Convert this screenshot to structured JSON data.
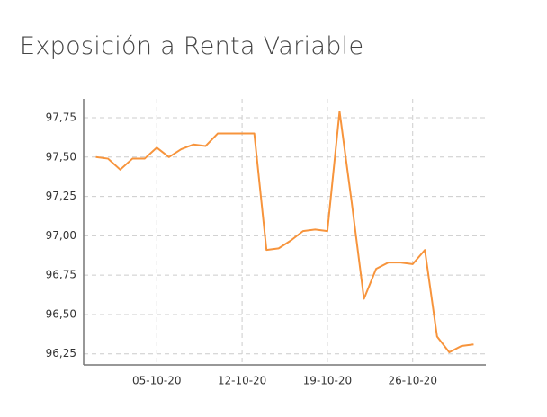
{
  "chart_data": {
    "type": "line",
    "title": "Exposición a Renta Variable",
    "x": [
      "2020-09-30",
      "2020-10-01",
      "2020-10-02",
      "2020-10-03",
      "2020-10-04",
      "2020-10-05",
      "2020-10-06",
      "2020-10-07",
      "2020-10-08",
      "2020-10-09",
      "2020-10-10",
      "2020-10-11",
      "2020-10-12",
      "2020-10-13",
      "2020-10-14",
      "2020-10-15",
      "2020-10-16",
      "2020-10-17",
      "2020-10-18",
      "2020-10-19",
      "2020-10-20",
      "2020-10-21",
      "2020-10-22",
      "2020-10-23",
      "2020-10-24",
      "2020-10-25",
      "2020-10-26",
      "2020-10-27",
      "2020-10-28",
      "2020-10-29",
      "2020-10-30",
      "2020-10-31"
    ],
    "series": [
      {
        "color": "#f7943c",
        "values": [
          97.5,
          97.49,
          97.42,
          97.49,
          97.49,
          97.56,
          97.5,
          97.55,
          97.58,
          97.57,
          97.65,
          97.65,
          97.65,
          97.65,
          96.91,
          96.92,
          96.97,
          97.03,
          97.04,
          97.03,
          97.79,
          97.21,
          96.6,
          96.79,
          96.83,
          96.83,
          96.82,
          96.91,
          96.36,
          96.26,
          96.3,
          96.31
        ]
      }
    ],
    "xlim": [
      "2020-09-29",
      "2020-11-01"
    ],
    "xticks": [
      {
        "value": "2020-10-05",
        "label": "05-10-20"
      },
      {
        "value": "2020-10-12",
        "label": "12-10-20"
      },
      {
        "value": "2020-10-19",
        "label": "19-10-20"
      },
      {
        "value": "2020-10-26",
        "label": "26-10-20"
      }
    ],
    "ylim": [
      96.18,
      97.87
    ],
    "yticks": [
      {
        "value": 96.25,
        "label": "96,25"
      },
      {
        "value": 96.5,
        "label": "96,50"
      },
      {
        "value": 96.75,
        "label": "96,75"
      },
      {
        "value": 97,
        "label": "97,00"
      },
      {
        "value": 97.25,
        "label": "97,25"
      },
      {
        "value": 97.5,
        "label": "97,50"
      },
      {
        "value": 97.75,
        "label": "97,75"
      }
    ],
    "grid": true
  }
}
